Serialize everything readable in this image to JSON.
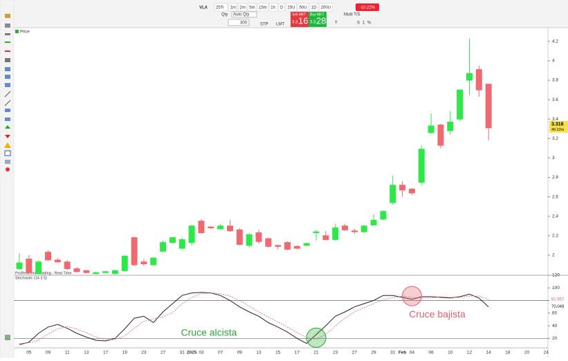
{
  "toolbar": {
    "symbol": "VLA",
    "timeframes": [
      "25Ti",
      "1m",
      "2m",
      "5m",
      "15m",
      "1h",
      "D",
      "25U",
      "50U",
      "1D",
      "200U"
    ],
    "change": "-10.22%",
    "qty_label": "Qty",
    "auto_qty": "Auto Qty",
    "qty": "300",
    "stp": "STP",
    "lmt": "LMT",
    "sell": "Sell MKT",
    "buy": "Buy MKT",
    "sell_big": "3.3",
    "sell_price": "16",
    "buy_big": "3.3",
    "buy_price": "28",
    "multi": "Multi T/S",
    "t": "T",
    "s": "S",
    "one": "1",
    "pct": "%"
  },
  "panel_label": "Price",
  "source_label": "ProRealTime Trading - Real Time",
  "chart_data": [
    {
      "type": "candlestick",
      "categories": [
        null,
        "05",
        null,
        "09",
        null,
        "11",
        null,
        "13",
        null,
        "17",
        null,
        "19",
        null,
        "23",
        null,
        "27",
        null,
        "31",
        "2025",
        "03",
        null,
        "07",
        null,
        "09",
        null,
        "13",
        null,
        "15",
        null,
        "17",
        null,
        "21",
        null,
        "23",
        null,
        "27",
        null,
        "29",
        null,
        "31",
        "Feb",
        "04",
        null,
        "06",
        null,
        "10",
        null,
        "12",
        null,
        "14",
        null,
        "18",
        null,
        "20",
        null,
        "24"
      ],
      "open": [
        1.86,
        1.96,
        1.81,
        2.03,
        1.95,
        1.93,
        1.86,
        1.84,
        1.81,
        1.82,
        1.81,
        1.84,
        2.18,
        1.93,
        1.9,
        2.04,
        2.13,
        2.07,
        2.13,
        2.35,
        2.29,
        2.27,
        2.3,
        2.26,
        2.1,
        2.23,
        2.17,
        2.1,
        2.13,
        2.09,
        2.1,
        2.23,
        2.2,
        2.16,
        2.3,
        2.25,
        2.24,
        2.31,
        2.37,
        2.54,
        2.72,
        2.68,
        2.75,
        3.26,
        3.34,
        3.28,
        3.4,
        3.8,
        3.91,
        3.76,
        null,
        null,
        null,
        null,
        null,
        null
      ],
      "high": [
        2.02,
        2.0,
        1.95,
        2.05,
        1.97,
        1.95,
        1.88,
        1.85,
        1.83,
        1.84,
        1.85,
        2.0,
        2.19,
        1.96,
        1.98,
        2.15,
        2.19,
        2.18,
        2.31,
        2.37,
        2.3,
        2.32,
        2.36,
        2.28,
        2.23,
        2.26,
        2.18,
        2.11,
        2.14,
        2.1,
        2.13,
        2.26,
        2.25,
        2.32,
        2.32,
        2.27,
        2.31,
        2.42,
        2.46,
        2.82,
        2.76,
        2.69,
        3.13,
        3.46,
        3.35,
        3.48,
        3.7,
        4.23,
        3.95,
        3.76,
        null,
        null,
        null,
        null,
        null,
        null
      ],
      "low": [
        1.85,
        1.81,
        1.8,
        1.94,
        1.92,
        1.85,
        1.82,
        1.81,
        1.8,
        1.81,
        1.8,
        1.83,
        1.89,
        1.89,
        1.89,
        2.03,
        2.12,
        2.06,
        2.1,
        2.22,
        2.27,
        2.26,
        2.24,
        2.1,
        2.08,
        2.12,
        2.08,
        2.06,
        2.05,
        2.06,
        2.09,
        2.15,
        2.15,
        2.15,
        2.25,
        2.22,
        2.23,
        2.3,
        2.36,
        2.52,
        2.6,
        2.62,
        2.72,
        3.25,
        3.1,
        3.24,
        3.38,
        3.65,
        3.63,
        3.18,
        null,
        null,
        null,
        null,
        null,
        null
      ],
      "close": [
        1.92,
        1.82,
        1.93,
        1.95,
        1.93,
        1.86,
        1.83,
        1.82,
        1.82,
        1.83,
        1.84,
        1.99,
        1.9,
        1.91,
        1.97,
        2.13,
        2.18,
        2.16,
        2.3,
        2.23,
        2.28,
        2.3,
        2.25,
        2.11,
        2.21,
        2.14,
        2.09,
        2.09,
        2.06,
        2.07,
        2.12,
        2.24,
        2.16,
        2.28,
        2.26,
        2.24,
        2.3,
        2.36,
        2.45,
        2.72,
        2.67,
        2.64,
        3.09,
        3.33,
        3.13,
        3.37,
        3.7,
        3.87,
        3.7,
        3.31,
        null,
        null,
        null,
        null,
        null,
        null
      ],
      "up_color": "#2ee84a",
      "down_color": "#ee6a70",
      "ylim": [
        1.8,
        4.27
      ],
      "yticks": [
        2,
        2.2,
        2.4,
        2.6,
        2.8,
        3,
        3.2,
        3.4,
        3.6,
        3.8,
        4,
        4.2
      ],
      "last_price": 3.318,
      "volume_label": "49.22m"
    },
    {
      "type": "line",
      "title": "Stochastic (14 3 5)",
      "series": [
        {
          "name": "%K",
          "color": "#222222",
          "dash": false,
          "last_value": 70.049,
          "values": [
            10,
            14,
            28,
            38,
            42,
            36,
            28,
            22,
            17,
            16,
            20,
            35,
            52,
            55,
            45,
            62,
            75,
            88,
            92,
            93,
            92,
            88,
            80,
            70,
            62,
            55,
            45,
            38,
            30,
            20,
            12,
            26,
            40,
            55,
            62,
            70,
            75,
            80,
            88,
            88,
            85,
            82,
            86,
            86,
            85,
            84,
            86,
            90,
            84,
            70
          ]
        },
        {
          "name": "%D",
          "color": "#e0606a",
          "dash": true,
          "last_value": 81.957,
          "values": [
            12,
            13,
            17,
            27,
            35,
            39,
            35,
            29,
            22,
            18,
            18,
            24,
            36,
            47,
            51,
            54,
            61,
            75,
            85,
            91,
            92,
            91,
            87,
            80,
            71,
            62,
            54,
            46,
            38,
            29,
            21,
            19,
            26,
            40,
            52,
            62,
            69,
            75,
            81,
            85,
            87,
            85,
            84,
            84,
            86,
            85,
            85,
            87,
            87,
            82
          ]
        }
      ],
      "levels": [
        20,
        80
      ],
      "ylim": [
        5,
        120
      ],
      "yticks": [
        20,
        40,
        60,
        80,
        100,
        120
      ],
      "annotations": [
        {
          "text": "Cruce alcista",
          "color": "#2aa836"
        },
        {
          "text": "Cruce bajista",
          "color": "#e0606a"
        }
      ]
    }
  ]
}
